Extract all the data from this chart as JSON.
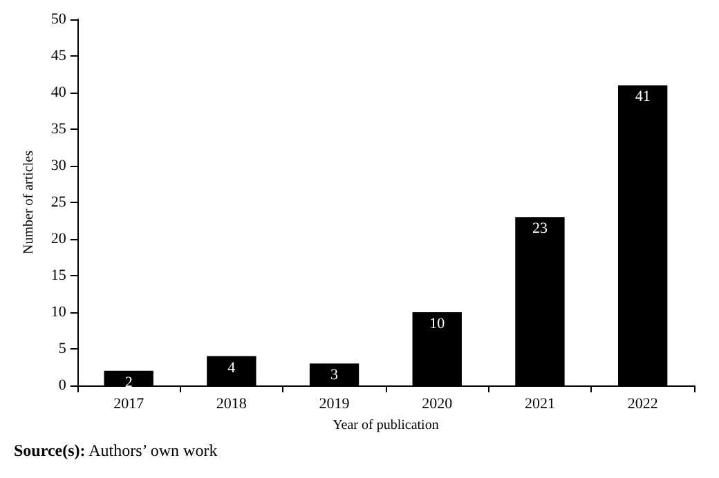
{
  "chart_data": {
    "type": "bar",
    "xlabel": "Year of publication",
    "ylabel": "Number of articles",
    "categories": [
      "2017",
      "2018",
      "2019",
      "2020",
      "2021",
      "2022"
    ],
    "values": [
      2,
      4,
      3,
      10,
      23,
      41
    ],
    "color": "#000000",
    "ylim": [
      0,
      50
    ],
    "yticks": [
      0,
      5,
      10,
      15,
      20,
      25,
      30,
      35,
      40,
      45,
      50
    ],
    "grid": false,
    "data_labels": true,
    "annotations": [
      "Source(s): Authors’ own work"
    ]
  }
}
